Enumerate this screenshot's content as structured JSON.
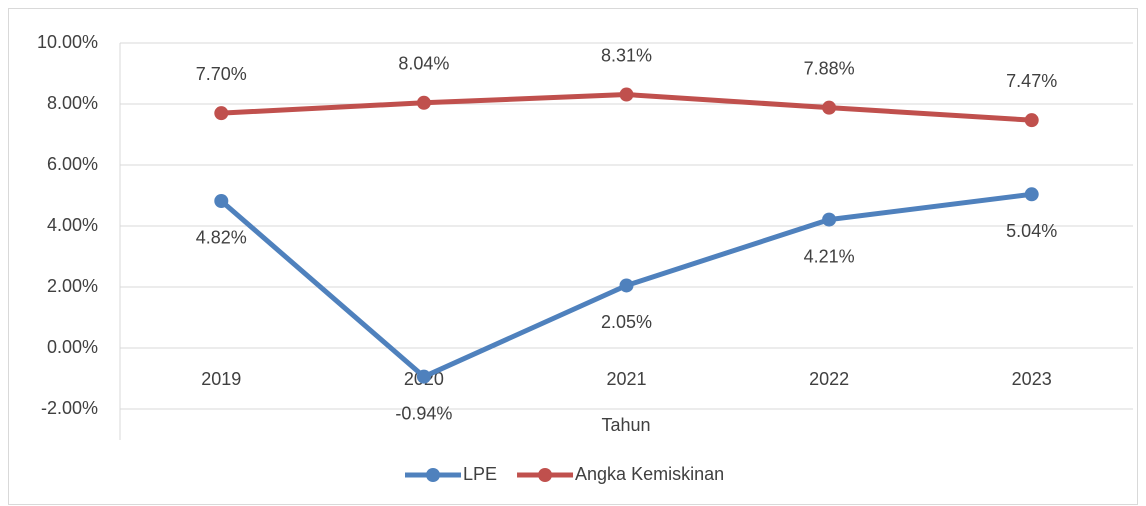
{
  "chart_data": {
    "type": "line",
    "x_label": "Tahun",
    "categories": [
      "2019",
      "2020",
      "2021",
      "2022",
      "2023"
    ],
    "series": [
      {
        "name": "LPE",
        "color": "#4f81bd",
        "values": [
          4.82,
          -0.94,
          2.05,
          4.21,
          5.04
        ],
        "value_labels": [
          "4.82%",
          "-0.94%",
          "2.05%",
          "4.21%",
          "5.04%"
        ]
      },
      {
        "name": "Angka Kemiskinan",
        "color": "#c0504d",
        "values": [
          7.7,
          8.04,
          8.31,
          7.88,
          7.47
        ],
        "value_labels": [
          "7.70%",
          "8.04%",
          "8.31%",
          "7.88%",
          "7.47%"
        ]
      }
    ],
    "ylim": [
      -2,
      10
    ],
    "yticks": [
      {
        "value": -2,
        "label": "-2.00%"
      },
      {
        "value": 0,
        "label": "0.00%"
      },
      {
        "value": 2,
        "label": "2.00%"
      },
      {
        "value": 4,
        "label": "4.00%"
      },
      {
        "value": 6,
        "label": "6.00%"
      },
      {
        "value": 8,
        "label": "8.00%"
      },
      {
        "value": 10,
        "label": "10.00%"
      }
    ],
    "grid": true,
    "legend": "bottom"
  }
}
